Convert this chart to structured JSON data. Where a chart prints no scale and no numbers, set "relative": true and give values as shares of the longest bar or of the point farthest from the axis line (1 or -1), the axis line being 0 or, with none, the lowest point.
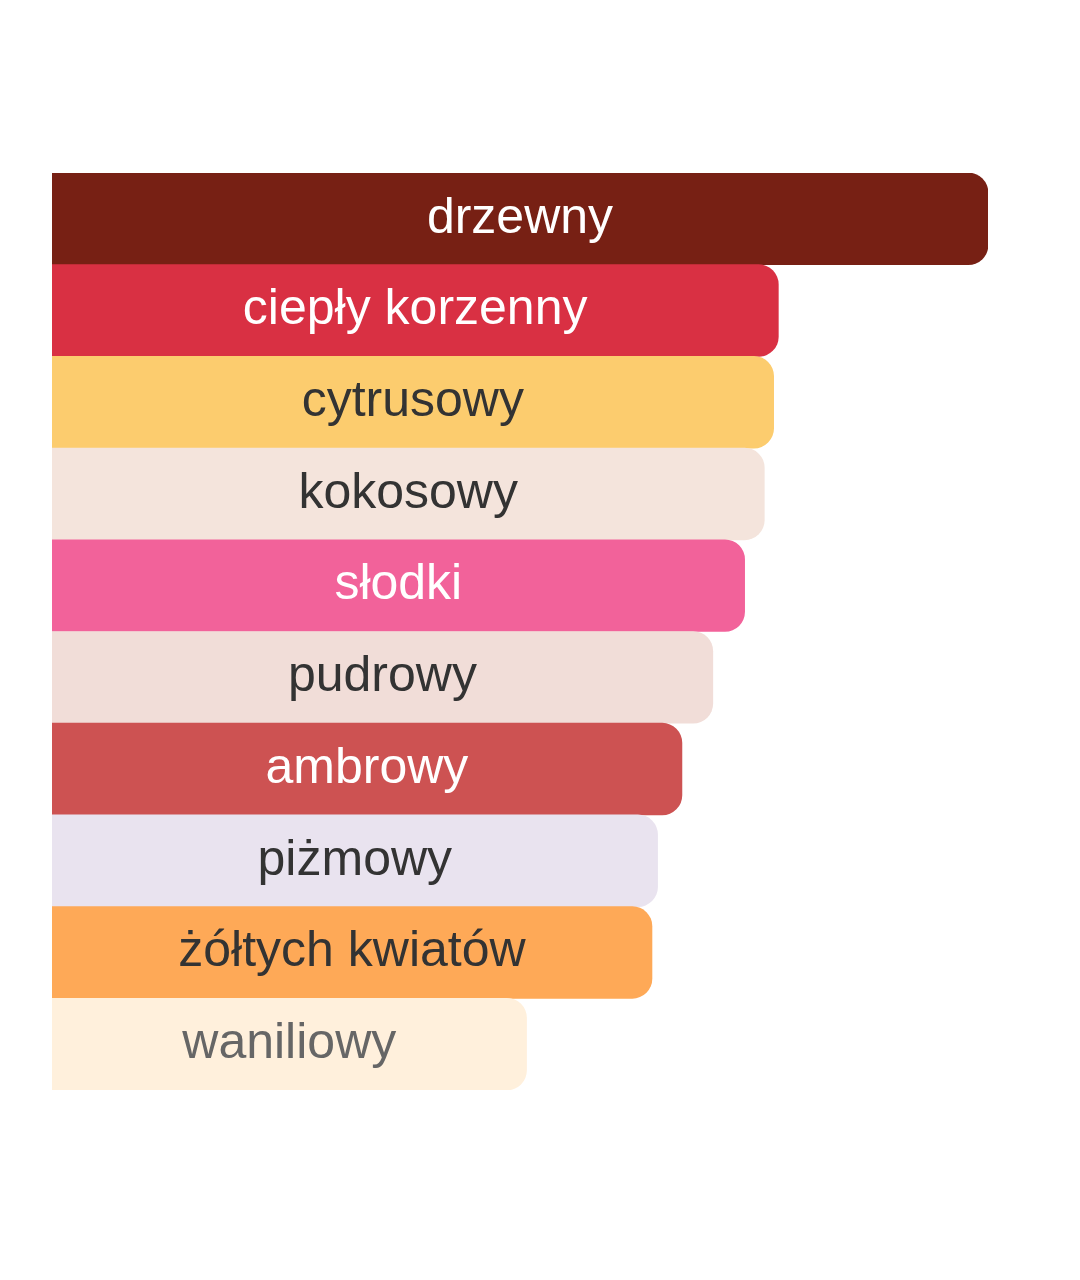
{
  "chart_data": {
    "type": "bar",
    "orientation": "horizontal",
    "relative": true,
    "categories": [
      "drzewny",
      "ciepły korzenny",
      "cytrusowy",
      "kokosowy",
      "słodki",
      "pudrowy",
      "ambrowy",
      "piżmowy",
      "żółtych kwiatów",
      "waniliowy"
    ],
    "values": [
      1,
      0.776,
      0.771,
      0.761,
      0.74,
      0.706,
      0.673,
      0.647,
      0.641,
      0.507
    ],
    "colors": [
      "#772014",
      "#d93043",
      "#fccc6e",
      "#f4e4dc",
      "#f2629a",
      "#f1ddd8",
      "#cd5252",
      "#e9e3ef",
      "#fea957",
      "#fff0dc"
    ],
    "legend": false
  }
}
